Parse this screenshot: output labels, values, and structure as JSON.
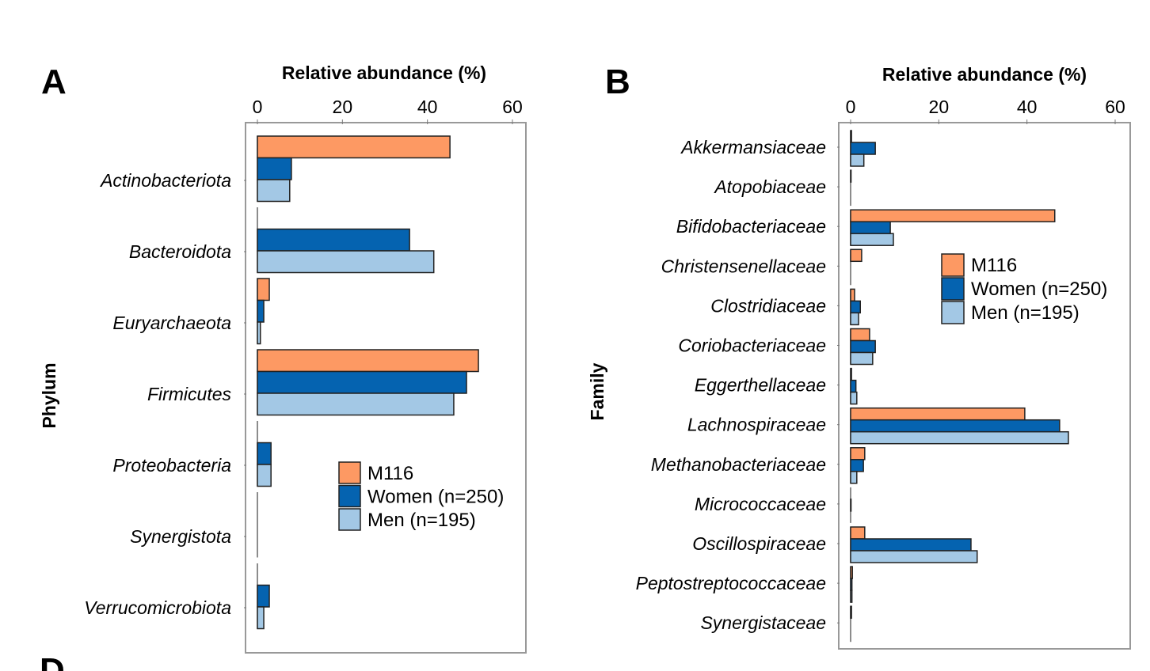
{
  "panel_letters": [
    "A",
    "B",
    "D"
  ],
  "colors": {
    "M116": "#fd9963",
    "Women": "#0563b0",
    "Men": "#a3c8e5",
    "frame": "#999999"
  },
  "legend": [
    "M116",
    "Women (n=250)",
    "Men (n=195)"
  ],
  "chart_data": [
    {
      "type": "bar",
      "orientation": "horizontal",
      "panel": "A",
      "title": "Relative abundance (%)",
      "xlabel": "Relative abundance (%)",
      "ylabel": "Phylum",
      "xlim": [
        0,
        60
      ],
      "xticks": [
        0,
        20,
        40,
        60
      ],
      "legend_position": "lower-right",
      "categories": [
        "Actinobacteriota",
        "Bacteroidota",
        "Euryarchaeota",
        "Firmicutes",
        "Proteobacteria",
        "Synergistota",
        "Verrucomicrobiota"
      ],
      "series": [
        {
          "name": "M116",
          "values": [
            45.3,
            0,
            2.8,
            52.0,
            0,
            0,
            0
          ]
        },
        {
          "name": "Women (n=250)",
          "values": [
            8.0,
            35.8,
            1.5,
            49.2,
            3.2,
            0,
            2.8
          ]
        },
        {
          "name": "Men (n=195)",
          "values": [
            7.6,
            41.5,
            0.7,
            46.2,
            3.2,
            0,
            1.5
          ]
        }
      ]
    },
    {
      "type": "bar",
      "orientation": "horizontal",
      "panel": "B",
      "title": "Relative abundance (%)",
      "xlabel": "Relative abundance (%)",
      "ylabel": "Family",
      "xlim": [
        0,
        60
      ],
      "xticks": [
        0,
        20,
        40,
        60
      ],
      "legend_position": "upper-right",
      "categories": [
        "Akkermansiaceae",
        "Atopobiaceae",
        "Bifidobacteriaceae",
        "Christensenellaceae",
        "Clostridiaceae",
        "Coriobacteriaceae",
        "Eggerthellaceae",
        "Lachnospiraceae",
        "Methanobacteriaceae",
        "Micrococcaceae",
        "Oscillospiraceae",
        "Peptostreptococcaceae",
        "Synergistaceae"
      ],
      "series": [
        {
          "name": "M116",
          "values": [
            0.2,
            0.1,
            46.3,
            2.5,
            0.9,
            4.3,
            0.2,
            39.5,
            3.2,
            0,
            3.2,
            0.4,
            0.2
          ]
        },
        {
          "name": "Women (n=250)",
          "values": [
            5.6,
            0,
            9.0,
            0,
            2.2,
            5.6,
            1.2,
            47.4,
            2.9,
            0.1,
            27.3,
            0.3,
            0
          ]
        },
        {
          "name": "Men (n=195)",
          "values": [
            3.0,
            0,
            9.7,
            0,
            1.8,
            5.0,
            1.4,
            49.4,
            1.4,
            0,
            28.7,
            0.3,
            0
          ]
        }
      ]
    }
  ]
}
